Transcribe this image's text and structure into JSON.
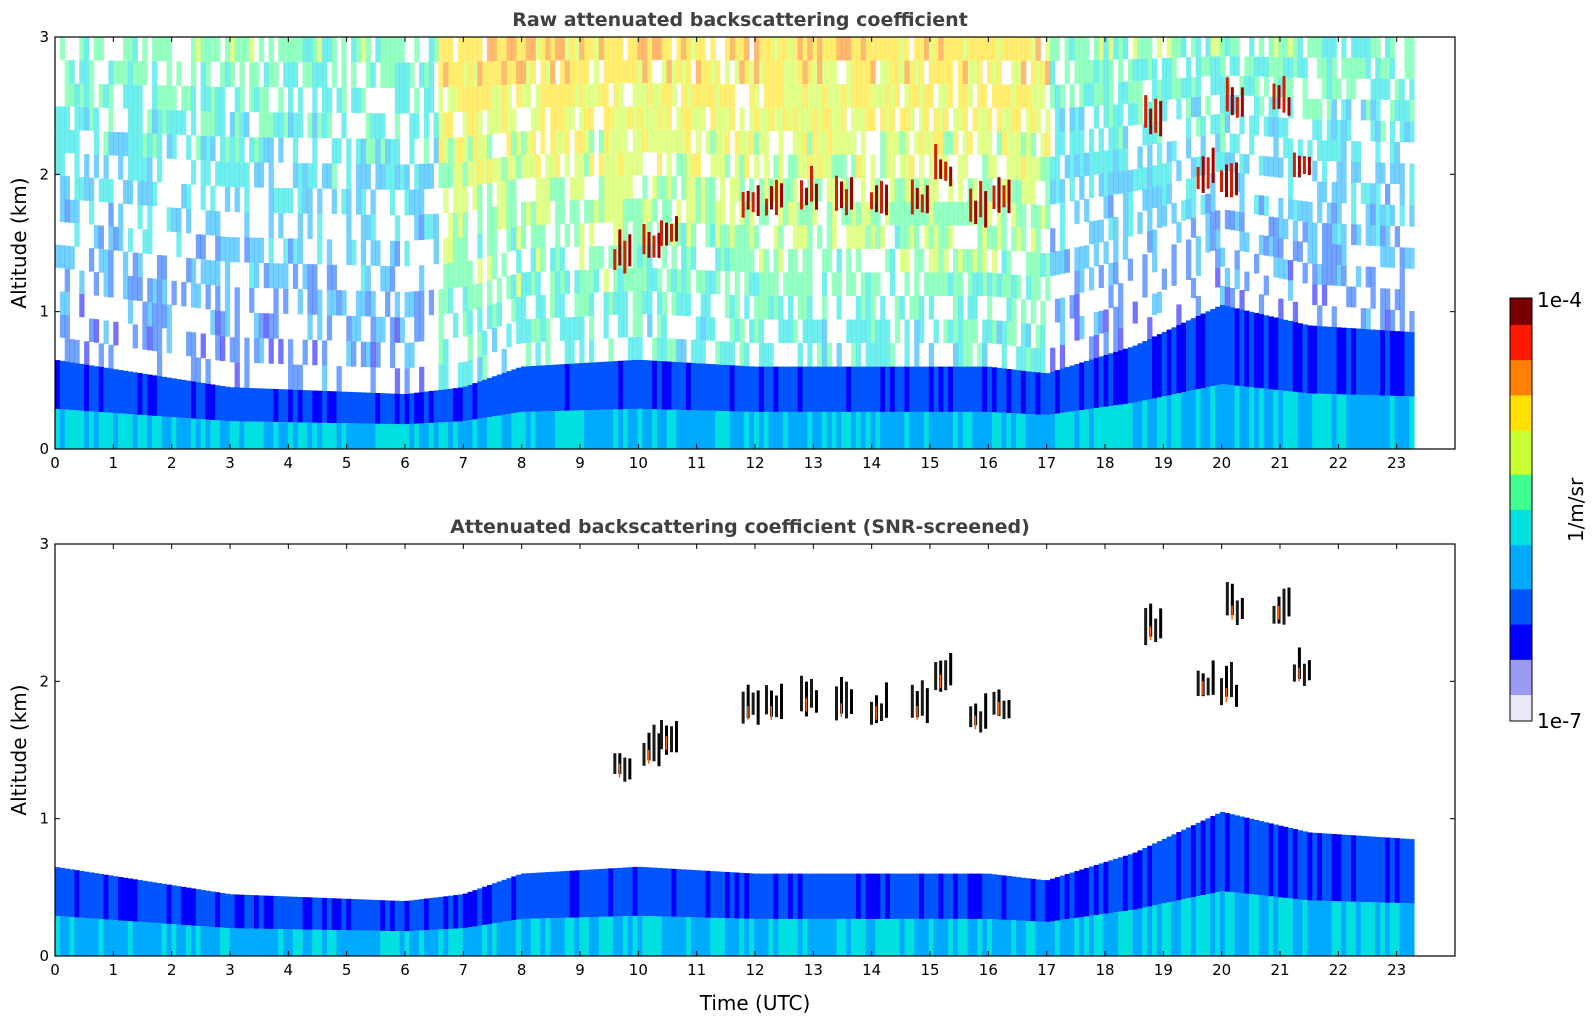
{
  "chart_data": [
    {
      "type": "heatmap",
      "title": "Raw attenuated backscattering coefficient",
      "xlabel": "",
      "ylabel": "Altitude (km)",
      "xlim": [
        0,
        24
      ],
      "ylim": [
        0,
        3
      ],
      "x_ticks": [
        "0",
        "1",
        "2",
        "3",
        "4",
        "5",
        "6",
        "7",
        "8",
        "9",
        "10",
        "11",
        "12",
        "13",
        "14",
        "15",
        "16",
        "17",
        "18",
        "19",
        "20",
        "21",
        "22",
        "23"
      ],
      "y_ticks": [
        "0",
        "1",
        "2",
        "3"
      ],
      "data_end_time_utc": 23.3,
      "noise": "strong speckle noise throughout the column, greenish-yellow at 2–3 km during daytime",
      "boundary_layer_top_km": [
        {
          "t": 0,
          "z": 0.65
        },
        {
          "t": 3,
          "z": 0.45
        },
        {
          "t": 6,
          "z": 0.4
        },
        {
          "t": 7,
          "z": 0.45
        },
        {
          "t": 8,
          "z": 0.6
        },
        {
          "t": 10,
          "z": 0.65
        },
        {
          "t": 12,
          "z": 0.6
        },
        {
          "t": 16,
          "z": 0.6
        },
        {
          "t": 17,
          "z": 0.55
        },
        {
          "t": 18.5,
          "z": 0.75
        },
        {
          "t": 20,
          "z": 1.05
        },
        {
          "t": 21.5,
          "z": 0.9
        },
        {
          "t": 23.3,
          "z": 0.85
        }
      ],
      "cloud_base_km": [
        {
          "t": 9.7,
          "z": 1.3
        },
        {
          "t": 10.2,
          "z": 1.4
        },
        {
          "t": 10.5,
          "z": 1.5
        },
        {
          "t": 11.9,
          "z": 1.72
        },
        {
          "t": 12.3,
          "z": 1.72
        },
        {
          "t": 12.9,
          "z": 1.78
        },
        {
          "t": 13.5,
          "z": 1.74
        },
        {
          "t": 14.1,
          "z": 1.72
        },
        {
          "t": 14.8,
          "z": 1.72
        },
        {
          "t": 15.2,
          "z": 1.95
        },
        {
          "t": 15.8,
          "z": 1.65
        },
        {
          "t": 16.2,
          "z": 1.75
        },
        {
          "t": 18.8,
          "z": 2.3
        },
        {
          "t": 19.7,
          "z": 1.9
        },
        {
          "t": 20.1,
          "z": 1.85
        },
        {
          "t": 20.2,
          "z": 2.45
        },
        {
          "t": 21.0,
          "z": 2.45
        },
        {
          "t": 21.35,
          "z": 2.0
        }
      ]
    },
    {
      "type": "heatmap",
      "title": "Attenuated backscattering coefficient (SNR-screened)",
      "xlabel": "Time (UTC)",
      "ylabel": "Altitude (km)",
      "xlim": [
        0,
        24
      ],
      "ylim": [
        0,
        3
      ],
      "x_ticks": [
        "0",
        "1",
        "2",
        "3",
        "4",
        "5",
        "6",
        "7",
        "8",
        "9",
        "10",
        "11",
        "12",
        "13",
        "14",
        "15",
        "16",
        "17",
        "18",
        "19",
        "20",
        "21",
        "22",
        "23"
      ],
      "y_ticks": [
        "0",
        "1",
        "2",
        "3"
      ],
      "data_end_time_utc": 23.3,
      "noise": "removed by SNR screening; only boundary layer and cloud returns remain"
    }
  ],
  "colorbar": {
    "min_label": "1e-7",
    "max_label": "1e-4",
    "label": "1/m/sr",
    "colors": [
      "#e8e8f8",
      "#9a9af0",
      "#0000ff",
      "#0055ff",
      "#00aaff",
      "#00e0e0",
      "#40ff90",
      "#c8ff30",
      "#ffe000",
      "#ff8000",
      "#ff1800",
      "#7a0000"
    ]
  }
}
